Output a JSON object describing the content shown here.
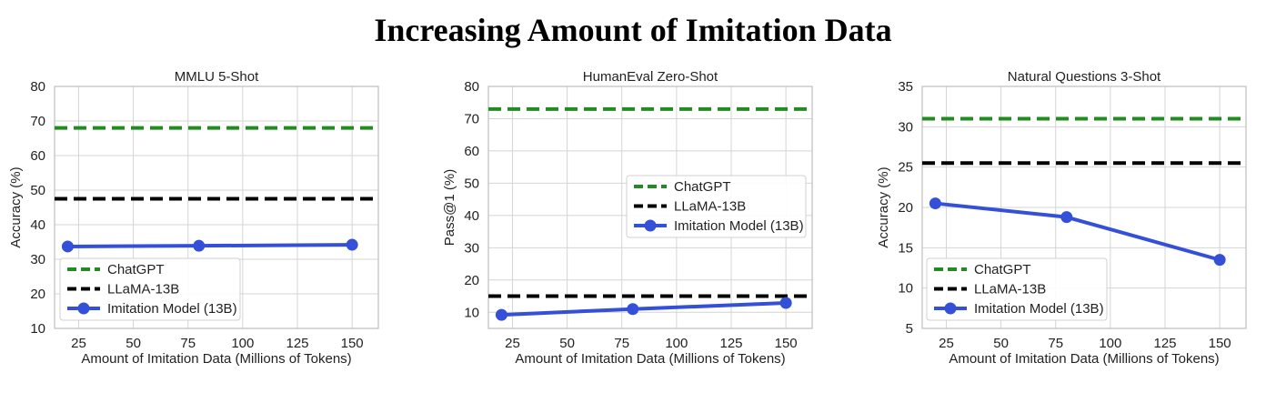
{
  "figure": {
    "title": "Increasing Amount of Imitation Data"
  },
  "colors": {
    "chatgpt": "#228B22",
    "llama": "#000000",
    "imitation": "#3450d8",
    "grid": "#d4d4d4",
    "frame": "#bfbfbf"
  },
  "chart_data": [
    {
      "type": "line",
      "title": "MMLU 5-Shot",
      "xlabel": "Amount of Imitation Data (Millions of Tokens)",
      "ylabel": "Accuracy (%)",
      "xlim": [
        14,
        162
      ],
      "ylim": [
        10,
        80
      ],
      "xticks": [
        "25",
        "50",
        "75",
        "100",
        "125",
        "150"
      ],
      "yticks": [
        "10",
        "20",
        "30",
        "40",
        "50",
        "60",
        "70",
        "80"
      ],
      "grid": true,
      "legend": "lower-left",
      "series": [
        {
          "name": "ChatGPT",
          "style": "dashed-hline",
          "color": "#228B22",
          "y": 68
        },
        {
          "name": "LLaMA-13B",
          "style": "dashed-hline",
          "color": "#000000",
          "y": 47.5
        },
        {
          "name": "Imitation Model (13B)",
          "style": "line-marker",
          "color": "#3450d8",
          "x": [
            20,
            80,
            150
          ],
          "y": [
            33.7,
            33.9,
            34.2
          ]
        }
      ]
    },
    {
      "type": "line",
      "title": "HumanEval Zero-Shot",
      "xlabel": "Amount of Imitation Data (Millions of Tokens)",
      "ylabel": "Pass@1 (%)",
      "xlim": [
        14,
        162
      ],
      "ylim": [
        5,
        80
      ],
      "xticks": [
        "25",
        "50",
        "75",
        "100",
        "125",
        "150"
      ],
      "yticks": [
        "10",
        "20",
        "30",
        "40",
        "50",
        "60",
        "70",
        "80"
      ],
      "grid": true,
      "legend": "center-right",
      "series": [
        {
          "name": "ChatGPT",
          "style": "dashed-hline",
          "color": "#228B22",
          "y": 73
        },
        {
          "name": "LLaMA-13B",
          "style": "dashed-hline",
          "color": "#000000",
          "y": 15
        },
        {
          "name": "Imitation Model (13B)",
          "style": "line-marker",
          "color": "#3450d8",
          "x": [
            20,
            80,
            150
          ],
          "y": [
            9.2,
            11,
            12.9
          ]
        }
      ]
    },
    {
      "type": "line",
      "title": "Natural Questions 3-Shot",
      "xlabel": "Amount of Imitation Data (Millions of Tokens)",
      "ylabel": "Accuracy (%)",
      "xlim": [
        14,
        162
      ],
      "ylim": [
        5,
        35
      ],
      "xticks": [
        "25",
        "50",
        "75",
        "100",
        "125",
        "150"
      ],
      "yticks": [
        "5",
        "10",
        "15",
        "20",
        "25",
        "30",
        "35"
      ],
      "grid": true,
      "legend": "lower-left",
      "series": [
        {
          "name": "ChatGPT",
          "style": "dashed-hline",
          "color": "#228B22",
          "y": 31
        },
        {
          "name": "LLaMA-13B",
          "style": "dashed-hline",
          "color": "#000000",
          "y": 25.5
        },
        {
          "name": "Imitation Model (13B)",
          "style": "line-marker",
          "color": "#3450d8",
          "x": [
            20,
            80,
            150
          ],
          "y": [
            20.5,
            18.8,
            13.5
          ]
        }
      ]
    }
  ]
}
